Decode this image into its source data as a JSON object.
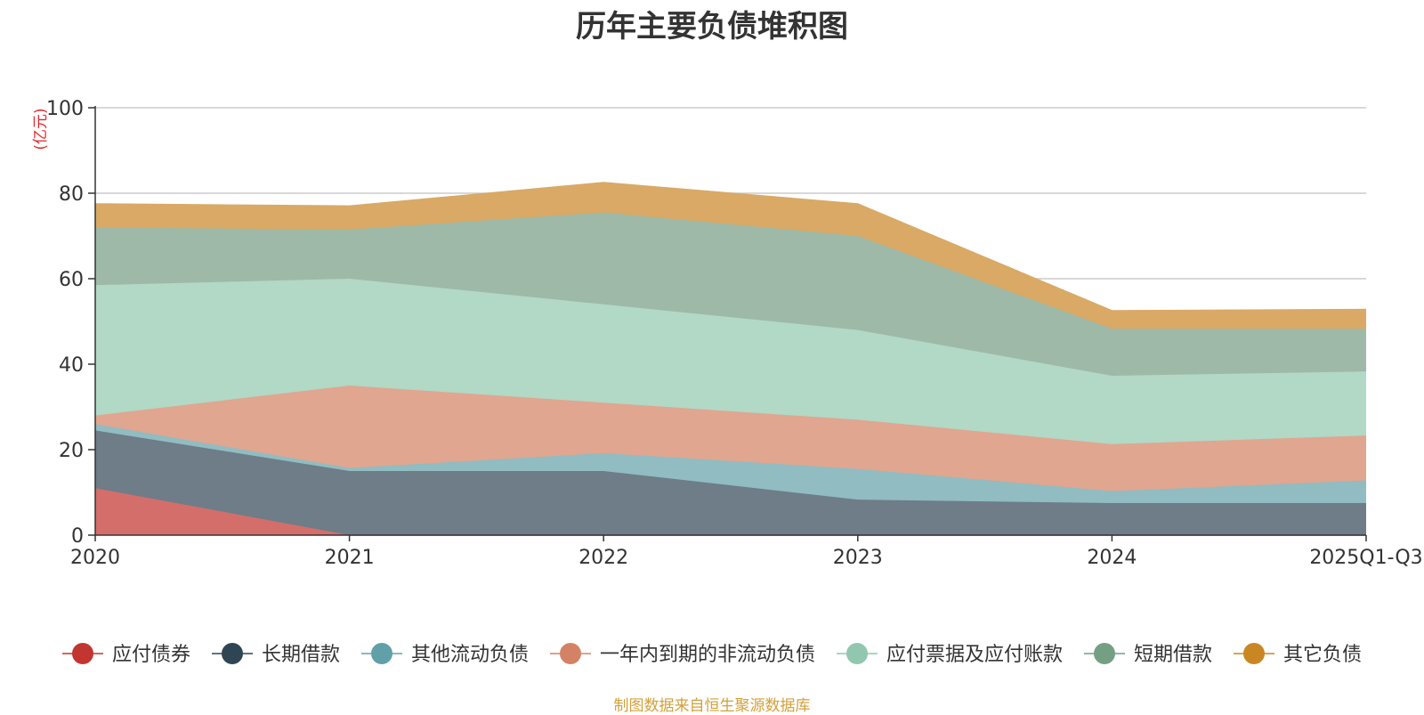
{
  "title": "历年主要负债堆积图",
  "source_note": "制图数据来自恒生聚源数据库",
  "chart_data": {
    "type": "area",
    "stacked": true,
    "title": "历年主要负债堆积图",
    "ylabel": "(亿元)",
    "xlabel": "",
    "categories": [
      "2020",
      "2021",
      "2022",
      "2023",
      "2024",
      "2025Q1-Q3"
    ],
    "ylim": [
      0,
      100
    ],
    "yticks": [
      "0",
      "20",
      "40",
      "60",
      "80",
      "100"
    ],
    "grid": true,
    "legend_position": "bottom",
    "series": [
      {
        "name": "应付债券",
        "color": "#c23531",
        "fill": "#d46e6a",
        "values": [
          11,
          0,
          0,
          0,
          0,
          0
        ]
      },
      {
        "name": "长期借款",
        "color": "#2f4554",
        "fill": "#6e7d88",
        "values": [
          13.5,
          15,
          15,
          8.3,
          7.5,
          7.5
        ]
      },
      {
        "name": "其他流动负债",
        "color": "#61a0a8",
        "fill": "#90bcc2",
        "values": [
          1.5,
          0.7,
          4.2,
          7.2,
          2.8,
          5.3
        ]
      },
      {
        "name": "一年内到期的非流动负债",
        "color": "#d48265",
        "fill": "#e0a690",
        "values": [
          2,
          19.3,
          11.8,
          11.5,
          11,
          10.5
        ]
      },
      {
        "name": "应付票据及应付账款",
        "color": "#91c7ae",
        "fill": "#b2d8c6",
        "values": [
          30.5,
          25,
          23,
          21,
          16,
          15
        ]
      },
      {
        "name": "短期借款",
        "color": "#749f83",
        "fill": "#9eb9a7",
        "values": [
          13.5,
          11.5,
          21.5,
          22,
          11,
          10
        ]
      },
      {
        "name": "其它负债",
        "color": "#ca8622",
        "fill": "#d9a965",
        "values": [
          5.5,
          5.5,
          7,
          7.5,
          4.2,
          4.5
        ]
      }
    ]
  }
}
